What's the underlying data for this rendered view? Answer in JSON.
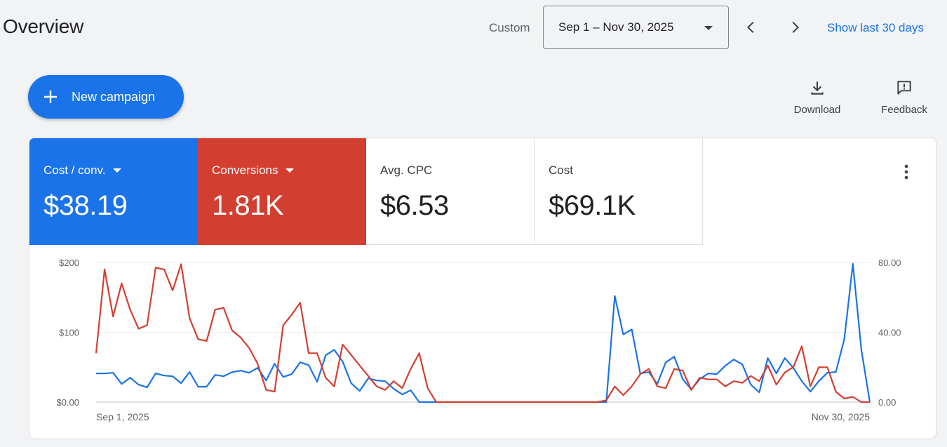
{
  "header": {
    "title": "Overview",
    "range_label": "Custom",
    "date_range": "Sep 1 – Nov 30, 2025",
    "show_last": "Show last 30 days"
  },
  "actions": {
    "new_campaign": "New campaign",
    "download": "Download",
    "feedback": "Feedback"
  },
  "metrics": [
    {
      "name": "Cost / conv.",
      "value": "$38.19",
      "color": "#1a73e8"
    },
    {
      "name": "Conversions",
      "value": "1.81K",
      "color": "#d23f31"
    },
    {
      "name": "Avg. CPC",
      "value": "$6.53"
    },
    {
      "name": "Cost",
      "value": "$69.1K"
    }
  ],
  "icons": [
    "plus-icon",
    "download-icon",
    "feedback-icon",
    "chevron-left-icon",
    "chevron-right-icon",
    "more-vert-icon",
    "caret-down-icon"
  ],
  "chart_data": {
    "type": "line",
    "x_start_label": "Sep 1, 2025",
    "x_end_label": "Nov 30, 2025",
    "left_axis": {
      "ticks": [
        "$0.00",
        "$100",
        "$200"
      ],
      "ylim": [
        0,
        200
      ]
    },
    "right_axis": {
      "ticks": [
        "0.00",
        "40.00",
        "80.00"
      ],
      "ylim": [
        0,
        80
      ]
    },
    "grid": true,
    "series": [
      {
        "name": "Cost / conv.",
        "axis": "left",
        "color": "#1a73e8",
        "values": [
          41,
          41,
          42,
          26,
          35,
          25,
          21,
          41,
          38,
          37,
          27,
          43,
          22,
          22,
          39,
          37,
          43,
          45,
          42,
          49,
          31,
          55,
          36,
          40,
          57,
          53,
          29,
          67,
          75,
          58,
          27,
          16,
          34,
          31,
          30,
          19,
          11,
          17,
          0,
          0,
          0,
          0,
          0,
          0,
          0,
          0,
          0,
          0,
          0,
          0,
          0,
          0,
          0,
          0,
          0,
          0,
          0,
          0,
          0,
          0,
          0,
          152,
          97,
          104,
          41,
          43,
          26,
          57,
          65,
          33,
          18,
          33,
          41,
          40,
          52,
          61,
          54,
          25,
          14,
          63,
          41,
          63,
          49,
          30,
          15,
          30,
          42,
          43,
          90,
          198,
          75,
          0
        ]
      },
      {
        "name": "Conversions",
        "axis": "right",
        "color": "#d23f31",
        "values": [
          28,
          76,
          49,
          68,
          53,
          42,
          44,
          77,
          76,
          64,
          79,
          48,
          36,
          35,
          53,
          54,
          41,
          37,
          31,
          22,
          7,
          6,
          44,
          50,
          57,
          28,
          28,
          14,
          9,
          33,
          27,
          21,
          15,
          9,
          7,
          12,
          8,
          19,
          28,
          8,
          0,
          0,
          0,
          0,
          0,
          0,
          0,
          0,
          0,
          0,
          0,
          0,
          0,
          0,
          0,
          0,
          0,
          0,
          0,
          0,
          1,
          9,
          4,
          9,
          16,
          19,
          9,
          8,
          19,
          18,
          7,
          14,
          13,
          13,
          9,
          12,
          11,
          15,
          12,
          21,
          10,
          17,
          20,
          32,
          9,
          20,
          20,
          6,
          2,
          3,
          0,
          0
        ]
      }
    ]
  }
}
